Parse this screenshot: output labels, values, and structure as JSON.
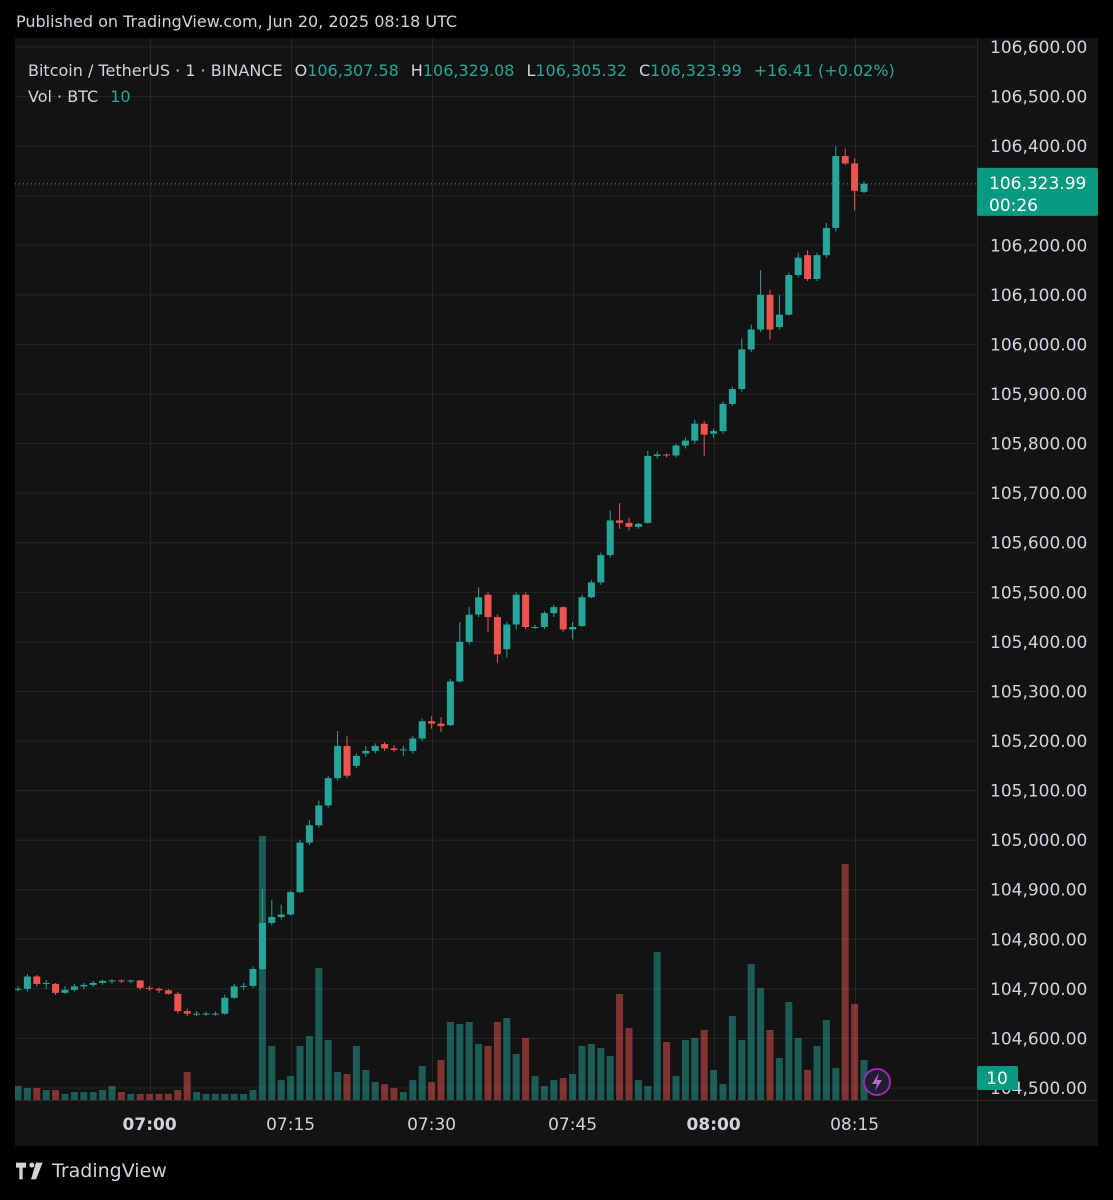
{
  "header": {
    "published": "Published on TradingView.com, Jun 20, 2025 08:18 UTC"
  },
  "legend": {
    "symbol": "Bitcoin / TetherUS · 1 · BINANCE",
    "o_label": "O",
    "o_value": "106,307.58",
    "h_label": "H",
    "h_value": "106,329.08",
    "l_label": "L",
    "l_value": "106,305.32",
    "c_label": "C",
    "c_value": "106,323.99",
    "change": "+16.41 (+0.02%)",
    "vol_label": "Vol · BTC",
    "vol_value": "10"
  },
  "price_tag": {
    "price": "106,323.99",
    "countdown": "00:26"
  },
  "volume_tag": "10",
  "footer": {
    "brand": "TradingView"
  },
  "colors": {
    "up": "#26a69a",
    "down": "#ef5350",
    "tag": "#089981",
    "bg": "#131313",
    "grid": "#262626"
  },
  "chart_data": {
    "type": "candlestick",
    "interval": "1 minute",
    "y_ticks": [
      104500,
      104600,
      104700,
      104800,
      104900,
      105000,
      105100,
      105200,
      105300,
      105400,
      105500,
      105600,
      105700,
      105800,
      105900,
      106000,
      106100,
      106200,
      106300,
      106400,
      106500,
      106600
    ],
    "y_tick_labels": [
      "104,500.00",
      "104,600.00",
      "104,700.00",
      "104,800.00",
      "104,900.00",
      "105,000.00",
      "105,100.00",
      "105,200.00",
      "105,300.00",
      "105,400.00",
      "105,500.00",
      "105,600.00",
      "105,700.00",
      "105,800.00",
      "105,900.00",
      "106,000.00",
      "106,100.00",
      "106,200.00",
      "106,300.00",
      "106,400.00",
      "106,500.00",
      "106,600.00"
    ],
    "x_ticks": [
      {
        "label": "07:00",
        "bold": true
      },
      {
        "label": "07:15",
        "bold": false
      },
      {
        "label": "07:30",
        "bold": false
      },
      {
        "label": "07:45",
        "bold": false
      },
      {
        "label": "08:00",
        "bold": true
      },
      {
        "label": "08:15",
        "bold": false
      }
    ],
    "last_price": 106323.99,
    "candles": [
      {
        "o": 104700,
        "h": 104705,
        "l": 104695,
        "c": 104700
      },
      {
        "o": 104700,
        "h": 104730,
        "l": 104695,
        "c": 104725
      },
      {
        "o": 104725,
        "h": 104728,
        "l": 104705,
        "c": 104710
      },
      {
        "o": 104712,
        "h": 104718,
        "l": 104700,
        "c": 104712
      },
      {
        "o": 104710,
        "h": 104712,
        "l": 104688,
        "c": 104692
      },
      {
        "o": 104692,
        "h": 104705,
        "l": 104690,
        "c": 104698
      },
      {
        "o": 104698,
        "h": 104710,
        "l": 104695,
        "c": 104705
      },
      {
        "o": 104705,
        "h": 104712,
        "l": 104700,
        "c": 104708
      },
      {
        "o": 104708,
        "h": 104716,
        "l": 104704,
        "c": 104712
      },
      {
        "o": 104712,
        "h": 104718,
        "l": 104708,
        "c": 104716
      },
      {
        "o": 104716,
        "h": 104719,
        "l": 104710,
        "c": 104717
      },
      {
        "o": 104717,
        "h": 104719,
        "l": 104712,
        "c": 104716
      },
      {
        "o": 104716,
        "h": 104718,
        "l": 104712,
        "c": 104717
      },
      {
        "o": 104717,
        "h": 104718,
        "l": 104698,
        "c": 104702
      },
      {
        "o": 104702,
        "h": 104706,
        "l": 104696,
        "c": 104700
      },
      {
        "o": 104700,
        "h": 104703,
        "l": 104692,
        "c": 104697
      },
      {
        "o": 104697,
        "h": 104700,
        "l": 104688,
        "c": 104690
      },
      {
        "o": 104690,
        "h": 104694,
        "l": 104650,
        "c": 104655
      },
      {
        "o": 104655,
        "h": 104660,
        "l": 104645,
        "c": 104650
      },
      {
        "o": 104650,
        "h": 104655,
        "l": 104645,
        "c": 104650
      },
      {
        "o": 104650,
        "h": 104654,
        "l": 104646,
        "c": 104650
      },
      {
        "o": 104650,
        "h": 104654,
        "l": 104646,
        "c": 104650
      },
      {
        "o": 104650,
        "h": 104688,
        "l": 104648,
        "c": 104682
      },
      {
        "o": 104682,
        "h": 104710,
        "l": 104680,
        "c": 104705
      },
      {
        "o": 104705,
        "h": 104712,
        "l": 104698,
        "c": 104706
      },
      {
        "o": 104706,
        "h": 104745,
        "l": 104702,
        "c": 104740
      },
      {
        "o": 104740,
        "h": 104902,
        "l": 104738,
        "c": 104833
      },
      {
        "o": 104833,
        "h": 104880,
        "l": 104828,
        "c": 104845
      },
      {
        "o": 104845,
        "h": 104870,
        "l": 104840,
        "c": 104850
      },
      {
        "o": 104850,
        "h": 104898,
        "l": 104848,
        "c": 104895
      },
      {
        "o": 104895,
        "h": 105000,
        "l": 104893,
        "c": 104995
      },
      {
        "o": 104995,
        "h": 105040,
        "l": 104990,
        "c": 105030
      },
      {
        "o": 105030,
        "h": 105080,
        "l": 105025,
        "c": 105070
      },
      {
        "o": 105070,
        "h": 105130,
        "l": 105065,
        "c": 105125
      },
      {
        "o": 105125,
        "h": 105220,
        "l": 105120,
        "c": 105190
      },
      {
        "o": 105190,
        "h": 105210,
        "l": 105125,
        "c": 105130
      },
      {
        "o": 105150,
        "h": 105175,
        "l": 105145,
        "c": 105170
      },
      {
        "o": 105175,
        "h": 105190,
        "l": 105168,
        "c": 105180
      },
      {
        "o": 105180,
        "h": 105195,
        "l": 105175,
        "c": 105190
      },
      {
        "o": 105194,
        "h": 105198,
        "l": 105180,
        "c": 105185
      },
      {
        "o": 105185,
        "h": 105192,
        "l": 105178,
        "c": 105182
      },
      {
        "o": 105182,
        "h": 105190,
        "l": 105170,
        "c": 105183
      },
      {
        "o": 105180,
        "h": 105210,
        "l": 105175,
        "c": 105205
      },
      {
        "o": 105205,
        "h": 105245,
        "l": 105200,
        "c": 105240
      },
      {
        "o": 105240,
        "h": 105250,
        "l": 105225,
        "c": 105235
      },
      {
        "o": 105235,
        "h": 105248,
        "l": 105218,
        "c": 105230
      },
      {
        "o": 105232,
        "h": 105325,
        "l": 105230,
        "c": 105320
      },
      {
        "o": 105320,
        "h": 105440,
        "l": 105318,
        "c": 105400
      },
      {
        "o": 105400,
        "h": 105470,
        "l": 105395,
        "c": 105455
      },
      {
        "o": 105455,
        "h": 105510,
        "l": 105450,
        "c": 105490
      },
      {
        "o": 105495,
        "h": 105500,
        "l": 105420,
        "c": 105450
      },
      {
        "o": 105450,
        "h": 105455,
        "l": 105358,
        "c": 105375
      },
      {
        "o": 105385,
        "h": 105440,
        "l": 105368,
        "c": 105435
      },
      {
        "o": 105435,
        "h": 105500,
        "l": 105425,
        "c": 105495
      },
      {
        "o": 105495,
        "h": 105500,
        "l": 105425,
        "c": 105430
      },
      {
        "o": 105430,
        "h": 105434,
        "l": 105426,
        "c": 105430
      },
      {
        "o": 105430,
        "h": 105462,
        "l": 105426,
        "c": 105458
      },
      {
        "o": 105458,
        "h": 105475,
        "l": 105450,
        "c": 105470
      },
      {
        "o": 105470,
        "h": 105472,
        "l": 105420,
        "c": 105425
      },
      {
        "o": 105425,
        "h": 105440,
        "l": 105405,
        "c": 105430
      },
      {
        "o": 105432,
        "h": 105495,
        "l": 105430,
        "c": 105490
      },
      {
        "o": 105490,
        "h": 105525,
        "l": 105488,
        "c": 105520
      },
      {
        "o": 105520,
        "h": 105580,
        "l": 105515,
        "c": 105575
      },
      {
        "o": 105575,
        "h": 105665,
        "l": 105570,
        "c": 105645
      },
      {
        "o": 105645,
        "h": 105680,
        "l": 105628,
        "c": 105640
      },
      {
        "o": 105640,
        "h": 105650,
        "l": 105625,
        "c": 105632
      },
      {
        "o": 105632,
        "h": 105640,
        "l": 105628,
        "c": 105638
      },
      {
        "o": 105640,
        "h": 105785,
        "l": 105638,
        "c": 105775
      },
      {
        "o": 105775,
        "h": 105784,
        "l": 105770,
        "c": 105778
      },
      {
        "o": 105778,
        "h": 105780,
        "l": 105772,
        "c": 105776
      },
      {
        "o": 105776,
        "h": 105800,
        "l": 105772,
        "c": 105796
      },
      {
        "o": 105796,
        "h": 105812,
        "l": 105790,
        "c": 105806
      },
      {
        "o": 105806,
        "h": 105848,
        "l": 105800,
        "c": 105840
      },
      {
        "o": 105840,
        "h": 105846,
        "l": 105775,
        "c": 105818
      },
      {
        "o": 105820,
        "h": 105830,
        "l": 105812,
        "c": 105825
      },
      {
        "o": 105825,
        "h": 105885,
        "l": 105820,
        "c": 105880
      },
      {
        "o": 105880,
        "h": 105915,
        "l": 105876,
        "c": 105910
      },
      {
        "o": 105910,
        "h": 106012,
        "l": 105905,
        "c": 105990
      },
      {
        "o": 105990,
        "h": 106040,
        "l": 105985,
        "c": 106030
      },
      {
        "o": 106030,
        "h": 106150,
        "l": 106025,
        "c": 106100
      },
      {
        "o": 106100,
        "h": 106110,
        "l": 106010,
        "c": 106030
      },
      {
        "o": 106035,
        "h": 106100,
        "l": 106030,
        "c": 106060
      },
      {
        "o": 106060,
        "h": 106145,
        "l": 106058,
        "c": 106140
      },
      {
        "o": 106140,
        "h": 106185,
        "l": 106135,
        "c": 106175
      },
      {
        "o": 106180,
        "h": 106190,
        "l": 106128,
        "c": 106132
      },
      {
        "o": 106132,
        "h": 106185,
        "l": 106128,
        "c": 106180
      },
      {
        "o": 106180,
        "h": 106245,
        "l": 106175,
        "c": 106235
      },
      {
        "o": 106235,
        "h": 106400,
        "l": 106228,
        "c": 106380
      },
      {
        "o": 106380,
        "h": 106395,
        "l": 106362,
        "c": 106365
      },
      {
        "o": 106365,
        "h": 106375,
        "l": 106270,
        "c": 106310
      },
      {
        "o": 106307.58,
        "h": 106329.08,
        "l": 106305.32,
        "c": 106323.99
      }
    ],
    "volume_heights_px": []
  }
}
